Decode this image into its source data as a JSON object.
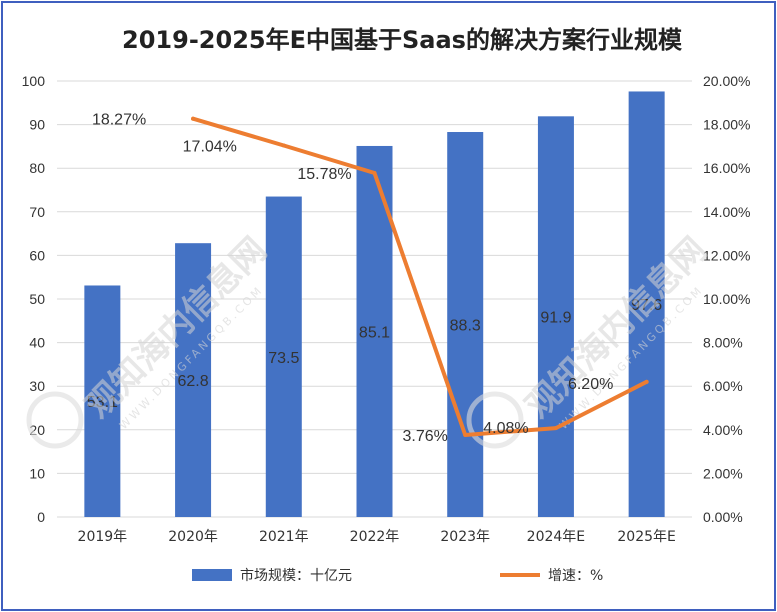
{
  "chart_data": {
    "type": "bar",
    "title": "2019-2025年E中国基于Saas的解决方案行业规模",
    "categories": [
      "2019年",
      "2020年",
      "2021年",
      "2022年",
      "2023年",
      "2024年E",
      "2025年E"
    ],
    "series": [
      {
        "name": "市场规模：十亿元",
        "type": "bar",
        "axis": "left",
        "color": "#4472c4",
        "values": [
          53.1,
          62.8,
          73.5,
          85.1,
          88.3,
          91.9,
          97.6
        ],
        "labels": [
          "53.1",
          "62.8",
          "73.5",
          "85.1",
          "88.3",
          "91.9",
          "97.6"
        ]
      },
      {
        "name": "增速：%",
        "type": "line",
        "axis": "right",
        "color": "#ed7d31",
        "values": [
          null,
          18.27,
          17.04,
          15.78,
          3.76,
          4.08,
          6.2
        ],
        "labels": [
          "",
          "18.27%",
          "17.04%",
          "15.78%",
          "3.76%",
          "4.08%",
          "6.20%"
        ]
      }
    ],
    "y_left": {
      "min": 0,
      "max": 100,
      "step": 10,
      "ticks": [
        "0",
        "10",
        "20",
        "30",
        "40",
        "50",
        "60",
        "70",
        "80",
        "90",
        "100"
      ]
    },
    "y_right": {
      "min": 0,
      "max": 20,
      "step": 2,
      "ticks": [
        "0.00%",
        "2.00%",
        "4.00%",
        "6.00%",
        "8.00%",
        "10.00%",
        "12.00%",
        "14.00%",
        "16.00%",
        "18.00%",
        "20.00%"
      ]
    },
    "grid": true,
    "legend": "bottom"
  },
  "watermark": {
    "text": "观知海内信息网",
    "url": "WWW.DONGFANGQB.COM"
  }
}
